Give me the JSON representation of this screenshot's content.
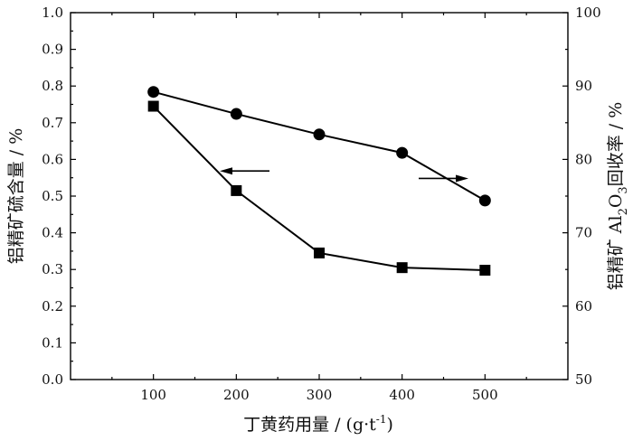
{
  "chart_data": {
    "type": "line",
    "x_label": "丁黄药用量 / (g·t",
    "x_label_sup": "-1",
    "x_label_tail": ")",
    "y_left_label": "铝精矿硫含量 / %",
    "y_right_label_parts": [
      "铝精矿 Al",
      "2",
      "O",
      "3",
      "回收率 / %"
    ],
    "x": [
      100,
      200,
      300,
      400,
      500
    ],
    "xlim": [
      0,
      600
    ],
    "x_ticks": [
      100,
      200,
      300,
      400,
      500
    ],
    "y_left_lim": [
      0.0,
      1.0
    ],
    "y_left_ticks": [
      "0.0",
      "0.1",
      "0.2",
      "0.3",
      "0.4",
      "0.5",
      "0.6",
      "0.7",
      "0.8",
      "0.9",
      "1.0"
    ],
    "y_right_lim": [
      50,
      100
    ],
    "y_right_ticks": [
      "50",
      "60",
      "70",
      "80",
      "90",
      "100"
    ],
    "series": [
      {
        "axis": "left",
        "marker": "square",
        "values": [
          0.745,
          0.515,
          0.345,
          0.305,
          0.298
        ]
      },
      {
        "axis": "right",
        "marker": "circle",
        "values": [
          89.2,
          86.2,
          83.4,
          80.9,
          74.4
        ]
      }
    ],
    "annotations": [
      {
        "type": "arrow",
        "points_to": "left axis",
        "series": 0
      },
      {
        "type": "arrow",
        "points_to": "right axis",
        "series": 1
      }
    ],
    "grid": false
  }
}
